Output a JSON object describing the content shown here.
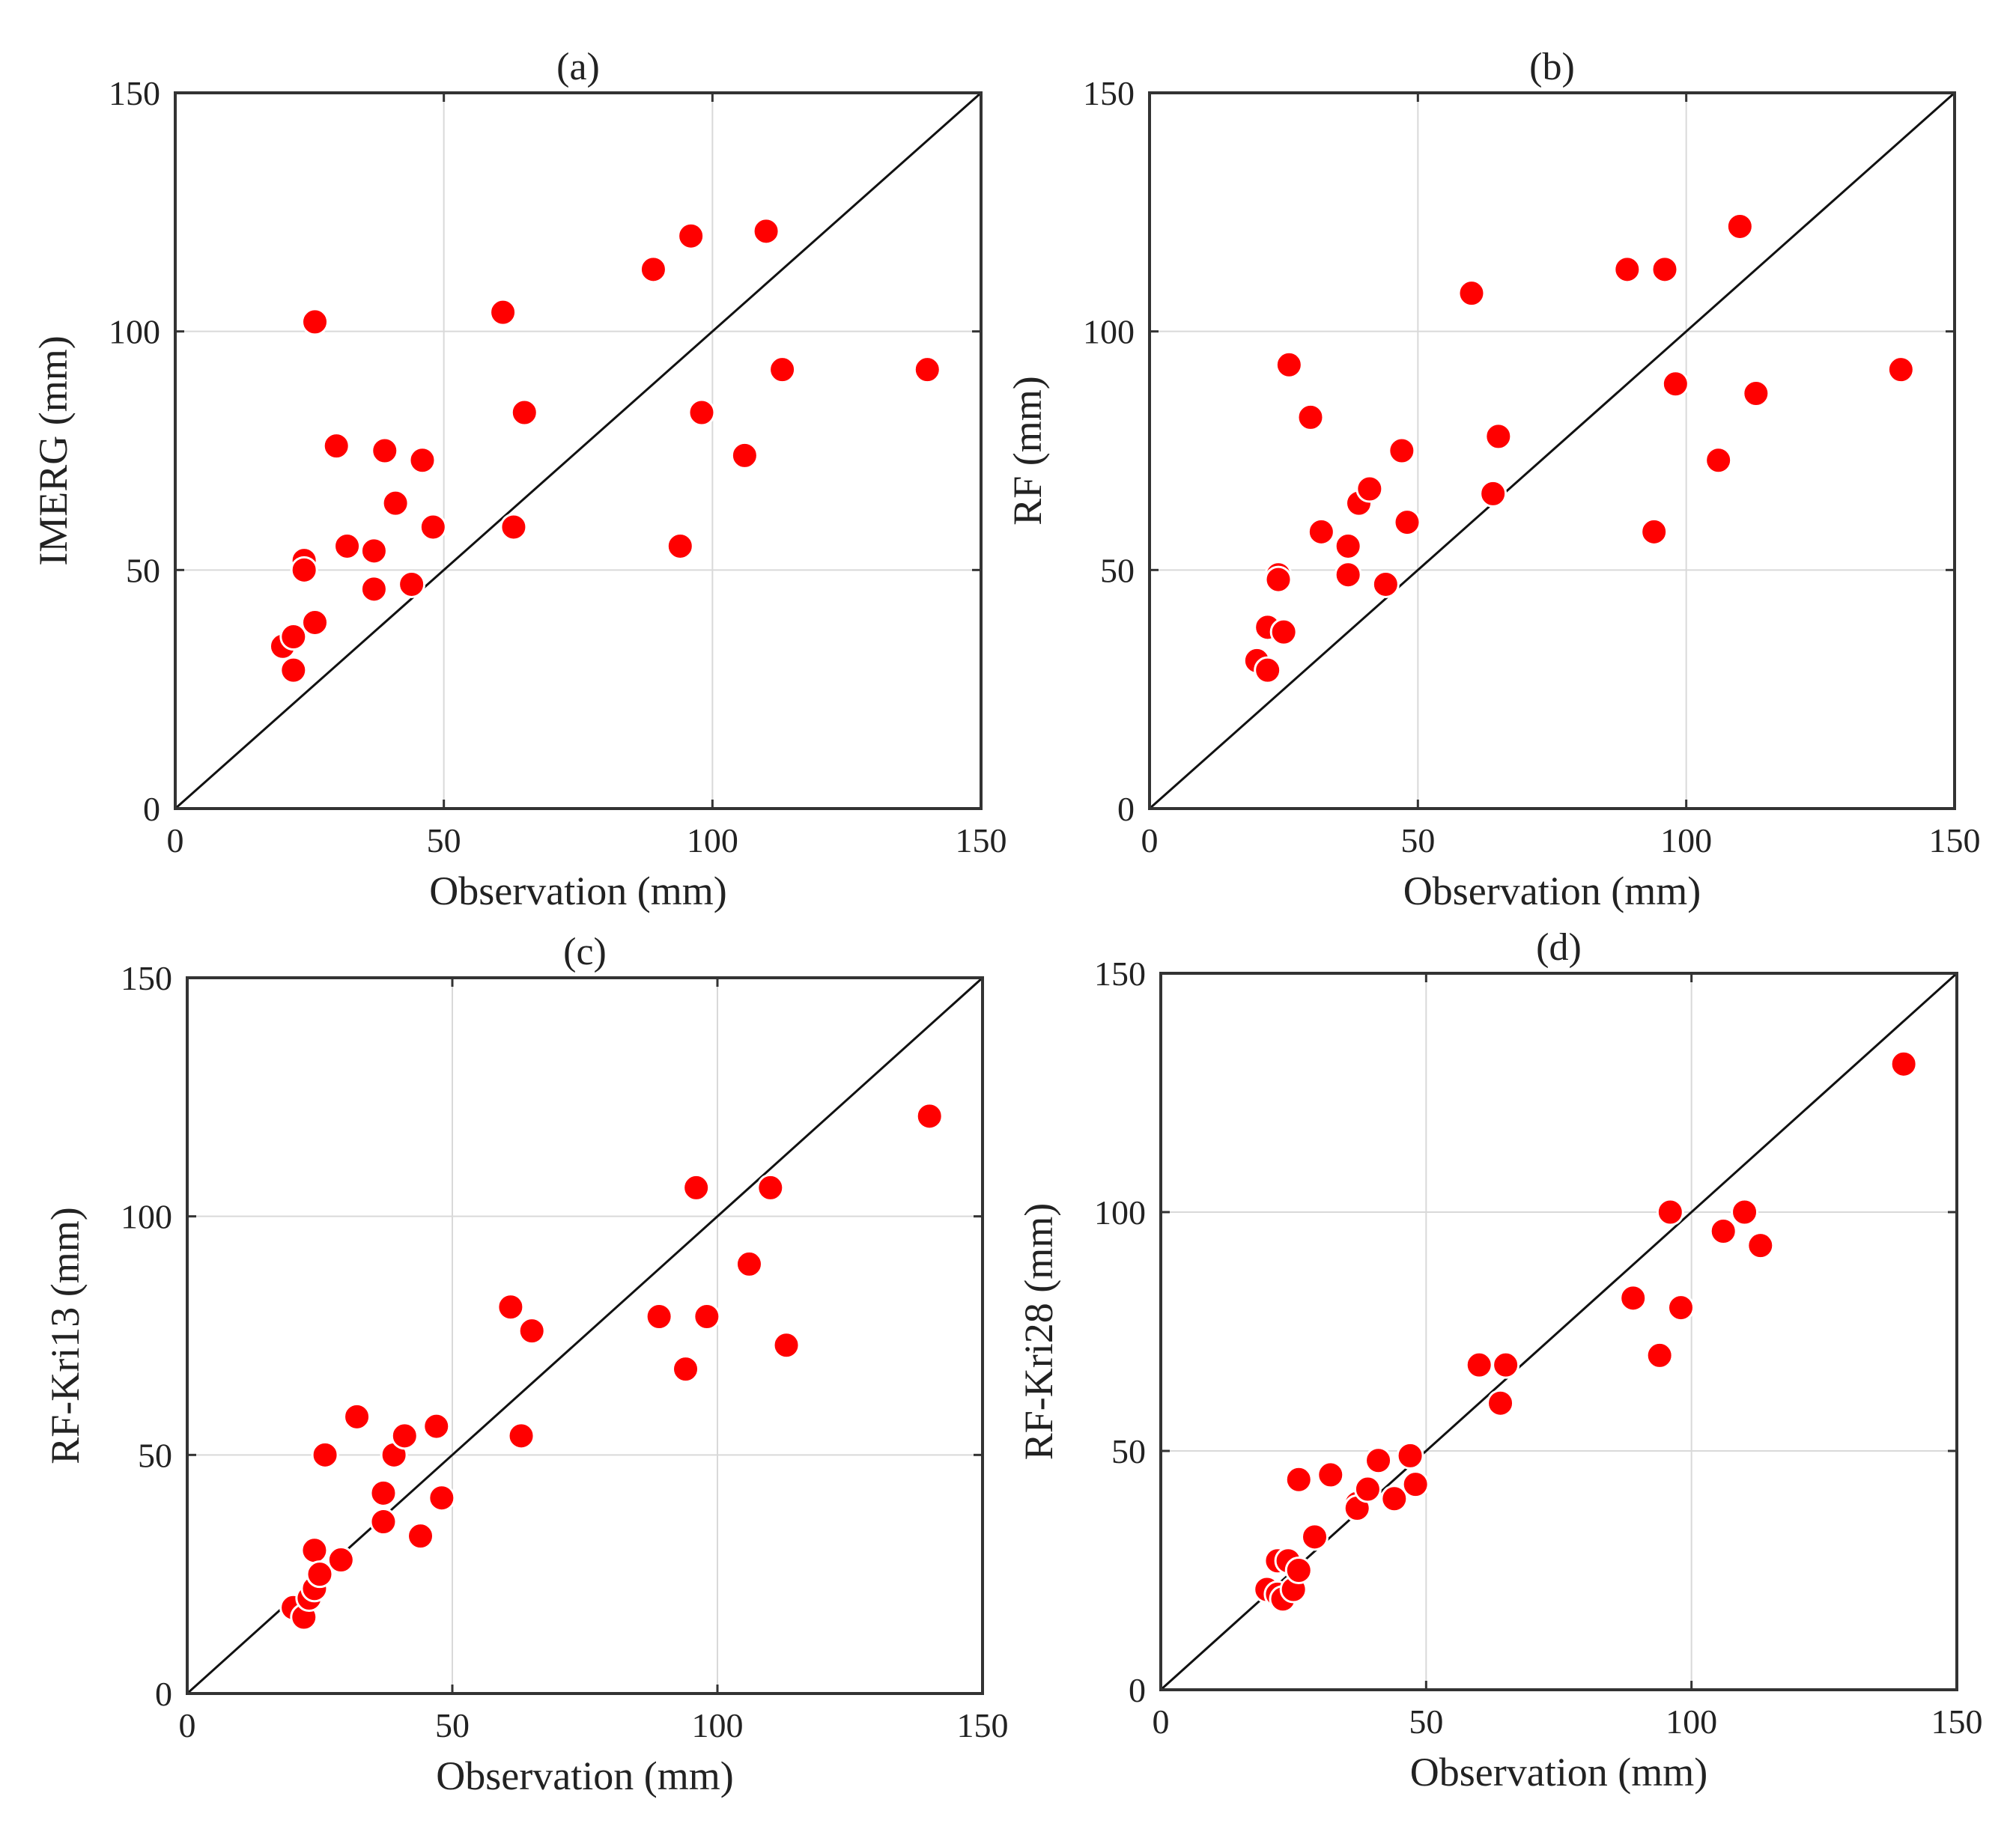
{
  "figure": {
    "point_color": "#ff0000",
    "point_outline_color": "#ffffff",
    "identity_line_color": "#111111",
    "grid_color": "#d9d9d9",
    "frame_color": "#333333"
  },
  "chart_data": [
    {
      "panel": "a",
      "type": "scatter",
      "title": "(a)",
      "xlabel": "Observation (mm)",
      "ylabel": "IMERG (mm)",
      "xlim": [
        0,
        150
      ],
      "ylim": [
        0,
        150
      ],
      "xticks": [
        "0",
        "50",
        "100",
        "150"
      ],
      "yticks": [
        "0",
        "50",
        "100",
        "150"
      ],
      "reference_line": "y = x",
      "grid": true,
      "points": [
        {
          "x": 20,
          "y": 34
        },
        {
          "x": 22,
          "y": 36
        },
        {
          "x": 22,
          "y": 29
        },
        {
          "x": 24,
          "y": 52
        },
        {
          "x": 24,
          "y": 50
        },
        {
          "x": 26,
          "y": 39
        },
        {
          "x": 26,
          "y": 102
        },
        {
          "x": 30,
          "y": 76
        },
        {
          "x": 32,
          "y": 55
        },
        {
          "x": 37,
          "y": 54
        },
        {
          "x": 37,
          "y": 46
        },
        {
          "x": 39,
          "y": 75
        },
        {
          "x": 41,
          "y": 64
        },
        {
          "x": 44,
          "y": 47
        },
        {
          "x": 46,
          "y": 73
        },
        {
          "x": 48,
          "y": 59
        },
        {
          "x": 61,
          "y": 104
        },
        {
          "x": 63,
          "y": 59
        },
        {
          "x": 65,
          "y": 83
        },
        {
          "x": 89,
          "y": 113
        },
        {
          "x": 94,
          "y": 55
        },
        {
          "x": 96,
          "y": 120
        },
        {
          "x": 98,
          "y": 83
        },
        {
          "x": 106,
          "y": 74
        },
        {
          "x": 110,
          "y": 121
        },
        {
          "x": 113,
          "y": 92
        },
        {
          "x": 140,
          "y": 92
        }
      ]
    },
    {
      "panel": "b",
      "type": "scatter",
      "title": "(b)",
      "xlabel": "Observation (mm)",
      "ylabel": "RF (mm)",
      "xlim": [
        0,
        150
      ],
      "ylim": [
        0,
        150
      ],
      "xticks": [
        "0",
        "50",
        "100",
        "150"
      ],
      "yticks": [
        "0",
        "50",
        "100",
        "150"
      ],
      "reference_line": "y = x",
      "grid": true,
      "points": [
        {
          "x": 20,
          "y": 31
        },
        {
          "x": 22,
          "y": 38
        },
        {
          "x": 22,
          "y": 29
        },
        {
          "x": 24,
          "y": 49
        },
        {
          "x": 24,
          "y": 48
        },
        {
          "x": 25,
          "y": 37
        },
        {
          "x": 26,
          "y": 93
        },
        {
          "x": 30,
          "y": 82
        },
        {
          "x": 32,
          "y": 58
        },
        {
          "x": 37,
          "y": 55
        },
        {
          "x": 37,
          "y": 49
        },
        {
          "x": 39,
          "y": 64
        },
        {
          "x": 41,
          "y": 67
        },
        {
          "x": 44,
          "y": 47
        },
        {
          "x": 47,
          "y": 75
        },
        {
          "x": 48,
          "y": 60
        },
        {
          "x": 60,
          "y": 108
        },
        {
          "x": 64,
          "y": 66
        },
        {
          "x": 65,
          "y": 78
        },
        {
          "x": 89,
          "y": 113
        },
        {
          "x": 94,
          "y": 58
        },
        {
          "x": 96,
          "y": 113
        },
        {
          "x": 98,
          "y": 89
        },
        {
          "x": 106,
          "y": 73
        },
        {
          "x": 110,
          "y": 122
        },
        {
          "x": 113,
          "y": 87
        },
        {
          "x": 140,
          "y": 92
        }
      ]
    },
    {
      "panel": "c",
      "type": "scatter",
      "title": "(c)",
      "xlabel": "Observation (mm)",
      "ylabel": "RF-Kri13 (mm)",
      "xlim": [
        0,
        150
      ],
      "ylim": [
        0,
        150
      ],
      "xticks": [
        "0",
        "50",
        "100",
        "150"
      ],
      "yticks": [
        "0",
        "50",
        "100",
        "150"
      ],
      "reference_line": "y = x",
      "grid": true,
      "points": [
        {
          "x": 20,
          "y": 18
        },
        {
          "x": 22,
          "y": 16
        },
        {
          "x": 23,
          "y": 20
        },
        {
          "x": 24,
          "y": 22
        },
        {
          "x": 24,
          "y": 30
        },
        {
          "x": 25,
          "y": 25
        },
        {
          "x": 26,
          "y": 50
        },
        {
          "x": 29,
          "y": 28
        },
        {
          "x": 32,
          "y": 58
        },
        {
          "x": 37,
          "y": 42
        },
        {
          "x": 37,
          "y": 36
        },
        {
          "x": 39,
          "y": 50
        },
        {
          "x": 41,
          "y": 54
        },
        {
          "x": 44,
          "y": 33
        },
        {
          "x": 47,
          "y": 56
        },
        {
          "x": 48,
          "y": 41
        },
        {
          "x": 61,
          "y": 81
        },
        {
          "x": 63,
          "y": 54
        },
        {
          "x": 65,
          "y": 76
        },
        {
          "x": 89,
          "y": 79
        },
        {
          "x": 94,
          "y": 68
        },
        {
          "x": 96,
          "y": 106
        },
        {
          "x": 98,
          "y": 79
        },
        {
          "x": 106,
          "y": 90
        },
        {
          "x": 110,
          "y": 106
        },
        {
          "x": 113,
          "y": 73
        },
        {
          "x": 140,
          "y": 121
        }
      ]
    },
    {
      "panel": "d",
      "type": "scatter",
      "title": "(d)",
      "xlabel": "Observation (mm)",
      "ylabel": "RF-Kri28 (mm)",
      "xlim": [
        0,
        150
      ],
      "ylim": [
        0,
        150
      ],
      "xticks": [
        "0",
        "50",
        "100",
        "150"
      ],
      "yticks": [
        "0",
        "50",
        "100",
        "150"
      ],
      "reference_line": "y = x",
      "grid": true,
      "points": [
        {
          "x": 20,
          "y": 21
        },
        {
          "x": 22,
          "y": 20
        },
        {
          "x": 22,
          "y": 27
        },
        {
          "x": 23,
          "y": 19
        },
        {
          "x": 24,
          "y": 27
        },
        {
          "x": 25,
          "y": 21
        },
        {
          "x": 26,
          "y": 25
        },
        {
          "x": 26,
          "y": 44
        },
        {
          "x": 29,
          "y": 32
        },
        {
          "x": 32,
          "y": 45
        },
        {
          "x": 37,
          "y": 39
        },
        {
          "x": 37,
          "y": 38
        },
        {
          "x": 39,
          "y": 42
        },
        {
          "x": 41,
          "y": 48
        },
        {
          "x": 44,
          "y": 40
        },
        {
          "x": 47,
          "y": 49
        },
        {
          "x": 48,
          "y": 43
        },
        {
          "x": 60,
          "y": 68
        },
        {
          "x": 64,
          "y": 60
        },
        {
          "x": 65,
          "y": 68
        },
        {
          "x": 89,
          "y": 82
        },
        {
          "x": 94,
          "y": 70
        },
        {
          "x": 96,
          "y": 100
        },
        {
          "x": 98,
          "y": 80
        },
        {
          "x": 106,
          "y": 96
        },
        {
          "x": 110,
          "y": 100
        },
        {
          "x": 113,
          "y": 93
        },
        {
          "x": 140,
          "y": 131
        }
      ]
    }
  ]
}
